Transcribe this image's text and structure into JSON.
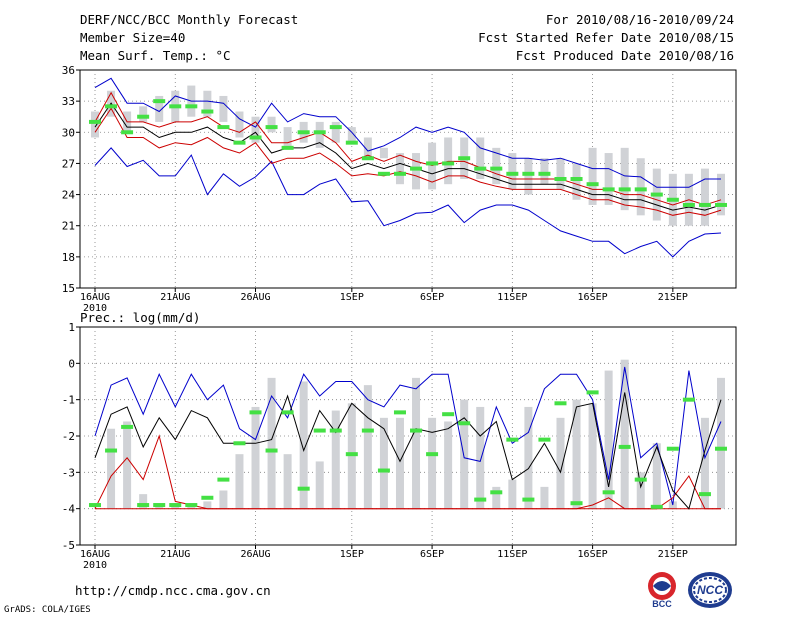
{
  "header": {
    "title": "DERF/NCC/BCC Monthly Forecast",
    "member_size": "Member Size=40",
    "variable": "Mean Surf. Temp.: °C",
    "period": "For 2010/08/16-2010/09/24",
    "fcst_started": "Fcst Started Refer Date 2010/08/15",
    "fcst_produced": "Fcst Produced Date 2010/08/16"
  },
  "footer": {
    "url": "http://cmdp.ncc.cma.gov.cn",
    "credit": "GrADS: COLA/IGES",
    "logo1_text": "BCC",
    "logo2_text": "NCC"
  },
  "colors": {
    "box": "#d0d2d6",
    "median_marker": "#44e044",
    "max_line": "#0000cc",
    "min_line": "#0000cc",
    "mean_line": "#000000",
    "spread_line": "#cc0000",
    "grid": "#808080"
  },
  "chart_data": [
    {
      "type": "box_line",
      "title": "Mean Surf. Temp.: °C",
      "x_tick_labels": [
        "16AUG",
        "21AUG",
        "26AUG",
        "1SEP",
        "6SEP",
        "11SEP",
        "16SEP",
        "21SEP"
      ],
      "x_tick_days": [
        0,
        5,
        10,
        16,
        21,
        26,
        31,
        36
      ],
      "x_sublabel": "2010",
      "ylim": [
        15,
        36
      ],
      "y_ticks": [
        15,
        18,
        21,
        24,
        27,
        30,
        33,
        36
      ],
      "n_days": 40,
      "box_low": [
        29.5,
        31.5,
        30,
        31,
        31,
        31,
        31.5,
        31.5,
        31,
        29.5,
        29,
        30,
        28.5,
        29,
        28.5,
        29,
        29,
        27.5,
        27.5,
        25,
        24.5,
        24.5,
        25,
        25.5,
        25.5,
        25,
        24.5,
        24,
        25,
        24.5,
        23.5,
        23,
        23,
        22.5,
        22,
        21.5,
        21,
        21,
        21,
        22
      ],
      "box_high": [
        32,
        34,
        32,
        32.5,
        33.5,
        34,
        34.5,
        34,
        33.5,
        32,
        31.5,
        31.5,
        30.5,
        31,
        31,
        31,
        30.5,
        29.5,
        28.5,
        28,
        28,
        29,
        29.5,
        29.5,
        29.5,
        28.5,
        28,
        27.5,
        27.5,
        27.5,
        27,
        28.5,
        28,
        28.5,
        27.5,
        26.5,
        26,
        26,
        26.5,
        26
      ],
      "median": [
        31,
        32.5,
        30,
        31.5,
        33,
        32.5,
        32.5,
        32,
        30.5,
        29,
        29.5,
        30.5,
        28.5,
        30,
        30,
        30.5,
        29,
        27.5,
        26,
        26,
        26.5,
        27,
        27,
        27.5,
        26.5,
        26.5,
        26,
        26,
        26,
        25.5,
        25.5,
        25,
        24.5,
        24.5,
        24.5,
        24,
        23.5,
        23,
        23,
        23
      ],
      "mean": [
        30.5,
        32.8,
        30.5,
        30.5,
        29.5,
        30,
        30,
        30.5,
        29.5,
        29,
        30,
        28,
        28.5,
        28.5,
        29,
        28,
        26.5,
        27,
        26.5,
        27,
        26.5,
        26,
        26.5,
        26.5,
        26,
        25.5,
        25,
        25,
        25,
        25,
        24.5,
        24,
        24,
        23.5,
        23.5,
        23,
        22.5,
        22.8,
        22.5,
        23
      ],
      "upper": [
        31,
        33.8,
        31,
        31,
        30.5,
        31,
        31,
        31.5,
        30.5,
        30,
        31,
        29,
        29,
        29.5,
        30,
        29,
        27.2,
        27.8,
        27.2,
        27.8,
        27.2,
        26.8,
        27.2,
        27.2,
        26.6,
        26,
        25.5,
        25.5,
        25.5,
        25.5,
        25,
        24.5,
        24.5,
        24,
        24,
        23.5,
        23,
        23.5,
        23,
        23.5
      ],
      "lower": [
        30,
        32.3,
        29.5,
        29.5,
        28.5,
        29,
        28.8,
        29.5,
        28.5,
        28,
        29,
        27,
        27.5,
        27.5,
        28,
        27,
        25.8,
        26,
        25.8,
        26.2,
        25.8,
        25.2,
        25.8,
        25.8,
        25.2,
        24.8,
        24.5,
        24.5,
        24.5,
        24.5,
        24,
        23.5,
        23.5,
        23,
        22.8,
        22.5,
        22,
        22.3,
        22,
        22.5
      ],
      "max": [
        34.3,
        35.2,
        32.8,
        32.8,
        32,
        33.5,
        33,
        33,
        32.8,
        31.3,
        30.5,
        32.8,
        31,
        31.8,
        31.5,
        31.5,
        30,
        28.2,
        28.7,
        29.5,
        30.5,
        30,
        30.5,
        30,
        28.5,
        28,
        27.5,
        27.5,
        27.3,
        27.5,
        27,
        26.5,
        26.5,
        25.8,
        25.7,
        24.7,
        24.7,
        24.7,
        25.5,
        25.5
      ],
      "min": [
        26.8,
        28.5,
        26.7,
        27.3,
        25.8,
        25.8,
        27.8,
        24,
        26,
        24.8,
        25.7,
        27.2,
        24,
        24,
        25,
        25.5,
        23.3,
        23.4,
        21,
        21.5,
        22.2,
        22.3,
        23,
        21.3,
        22.5,
        23,
        23,
        22.5,
        21.5,
        20.5,
        20,
        19.5,
        19.5,
        18.3,
        19,
        19.5,
        18,
        19.5,
        20.2,
        20.3
      ]
    },
    {
      "type": "box_line",
      "title": "Prec.: log(mm/d)",
      "x_tick_labels": [
        "16AUG",
        "21AUG",
        "26AUG",
        "1SEP",
        "6SEP",
        "11SEP",
        "16SEP",
        "21SEP"
      ],
      "x_tick_days": [
        0,
        5,
        10,
        16,
        21,
        26,
        31,
        36
      ],
      "x_sublabel": "2010",
      "ylim": [
        -5,
        1
      ],
      "y_ticks": [
        -5,
        -4,
        -3,
        -2,
        -1,
        0,
        1
      ],
      "n_days": 40,
      "box_low": [
        -4,
        -4,
        -4,
        -4,
        -4,
        -4,
        -4,
        -4,
        -4,
        -4,
        -4,
        -4,
        -4,
        -4,
        -4,
        -4,
        -4,
        -4,
        -4,
        -4,
        -4,
        -4,
        -4,
        -4,
        -4,
        -4,
        -4,
        -4,
        -4,
        -4,
        -4,
        -4,
        -4,
        -4,
        -4,
        -4,
        -4,
        -4,
        -4,
        -4
      ],
      "box_high": [
        -4,
        -1.8,
        -1.6,
        -3.6,
        -3.9,
        -3.9,
        -3.9,
        -3.8,
        -3.5,
        -2.5,
        -1.2,
        -0.4,
        -2.5,
        -0.5,
        -2.7,
        -1.3,
        -1.1,
        -0.6,
        -1.5,
        -1.5,
        -0.4,
        -1.5,
        -1.6,
        -1.0,
        -1.2,
        -3.4,
        -3.2,
        -1.2,
        -3.4,
        -1.5,
        -1.0,
        -1.1,
        -0.2,
        0.1,
        -3.0,
        -2.2,
        -3.8,
        -4.0,
        -1.5,
        -0.4
      ],
      "median": [
        -3.9,
        -2.4,
        -1.75,
        -3.9,
        -3.9,
        -3.9,
        -3.9,
        -3.7,
        -3.2,
        -2.2,
        -1.35,
        -2.4,
        -1.35,
        -3.45,
        -1.85,
        -1.85,
        -2.5,
        -1.85,
        -2.95,
        -1.35,
        -1.85,
        -2.5,
        -1.4,
        -1.65,
        -3.75,
        -3.55,
        -2.1,
        -3.75,
        -2.1,
        -1.1,
        -3.85,
        -0.8,
        -3.55,
        -2.3,
        -3.2,
        -3.95,
        -2.35,
        -1.0,
        -3.6,
        -2.35
      ],
      "mean": [
        -2.6,
        -1.4,
        -1.2,
        -2.3,
        -1.5,
        -2.1,
        -1.3,
        -1.5,
        -2.2,
        -2.2,
        -2.2,
        -2.1,
        -0.9,
        -2.4,
        -1.3,
        -1.9,
        -1.1,
        -1.5,
        -1.8,
        -2.7,
        -1.8,
        -1.9,
        -1.8,
        -1.5,
        -2.0,
        -1.6,
        -3.2,
        -2.9,
        -2.2,
        -3.0,
        -1.2,
        -1.1,
        -3.4,
        -0.8,
        -3.4,
        -2.3,
        -3.5,
        -4.0,
        -2.4,
        -1.0
      ],
      "upper": [
        -4.0,
        -3.1,
        -2.6,
        -3.2,
        -2.0,
        -3.8,
        -3.9,
        -4.0,
        -4.0,
        -4.0,
        -4.0,
        -4.0,
        -4.0,
        -4.0,
        -4.0,
        -4.0,
        -4.0,
        -4.0,
        -4.0,
        -4.0,
        -4.0,
        -4.0,
        -4.0,
        -4.0,
        -4.0,
        -4.0,
        -4.0,
        -4.0,
        -4.0,
        -4.0,
        -4.0,
        -3.9,
        -3.7,
        -4.0,
        -4.0,
        -4.0,
        -3.7,
        -3.1,
        -4.0,
        -4.0
      ],
      "lower": [
        -4.0,
        -4.0,
        -4.0,
        -4.0,
        -4.0,
        -4.0,
        -4.0,
        -4.0,
        -4.0,
        -4.0,
        -4.0,
        -4.0,
        -4.0,
        -4.0,
        -4.0,
        -4.0,
        -4.0,
        -4.0,
        -4.0,
        -4.0,
        -4.0,
        -4.0,
        -4.0,
        -4.0,
        -4.0,
        -4.0,
        -4.0,
        -4.0,
        -4.0,
        -4.0,
        -4.0,
        -4.0,
        -4.0,
        -4.0,
        -4.0,
        -4.0,
        -4.0,
        -4.0,
        -4.0,
        -4.0
      ],
      "max": [
        -2.0,
        -0.6,
        -0.4,
        -1.4,
        -0.3,
        -1.2,
        -0.3,
        -1.0,
        -0.6,
        -1.8,
        -2.1,
        -0.9,
        -1.5,
        -0.3,
        -0.9,
        -0.5,
        -0.5,
        -1.0,
        -1.2,
        -0.6,
        -0.7,
        -0.3,
        -0.3,
        -2.6,
        -2.7,
        -1.2,
        -2.2,
        -1.9,
        -0.7,
        -0.3,
        -0.3,
        -1.0,
        -3.2,
        -0.1,
        -2.6,
        -2.2,
        -3.9,
        -0.2,
        -2.6,
        -1.6
      ]
    }
  ]
}
